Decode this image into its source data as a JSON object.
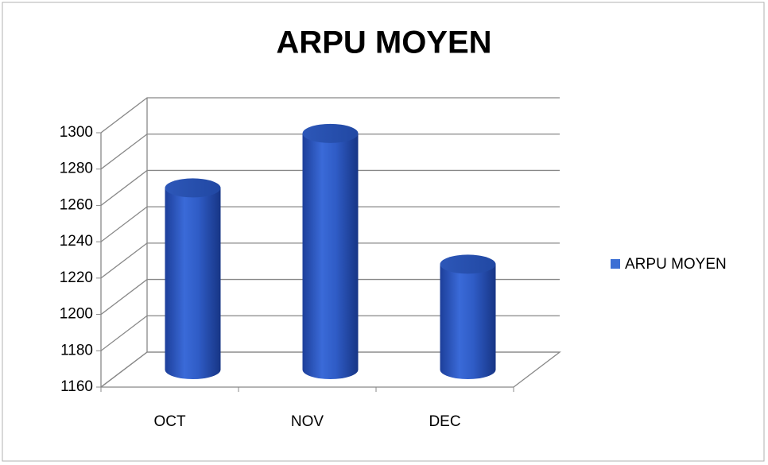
{
  "chart_data": {
    "type": "bar",
    "title": "ARPU MOYEN",
    "categories": [
      "OCT",
      "NOV",
      "DEC"
    ],
    "series": [
      {
        "name": "ARPU MOYEN",
        "color": "#3c6fd4",
        "values": [
          1260,
          1290,
          1218
        ]
      }
    ],
    "ylim": [
      1160,
      1300
    ],
    "yticks": [
      1160,
      1180,
      1200,
      1220,
      1240,
      1260,
      1280,
      1300
    ],
    "grid": true,
    "legend": "right"
  }
}
